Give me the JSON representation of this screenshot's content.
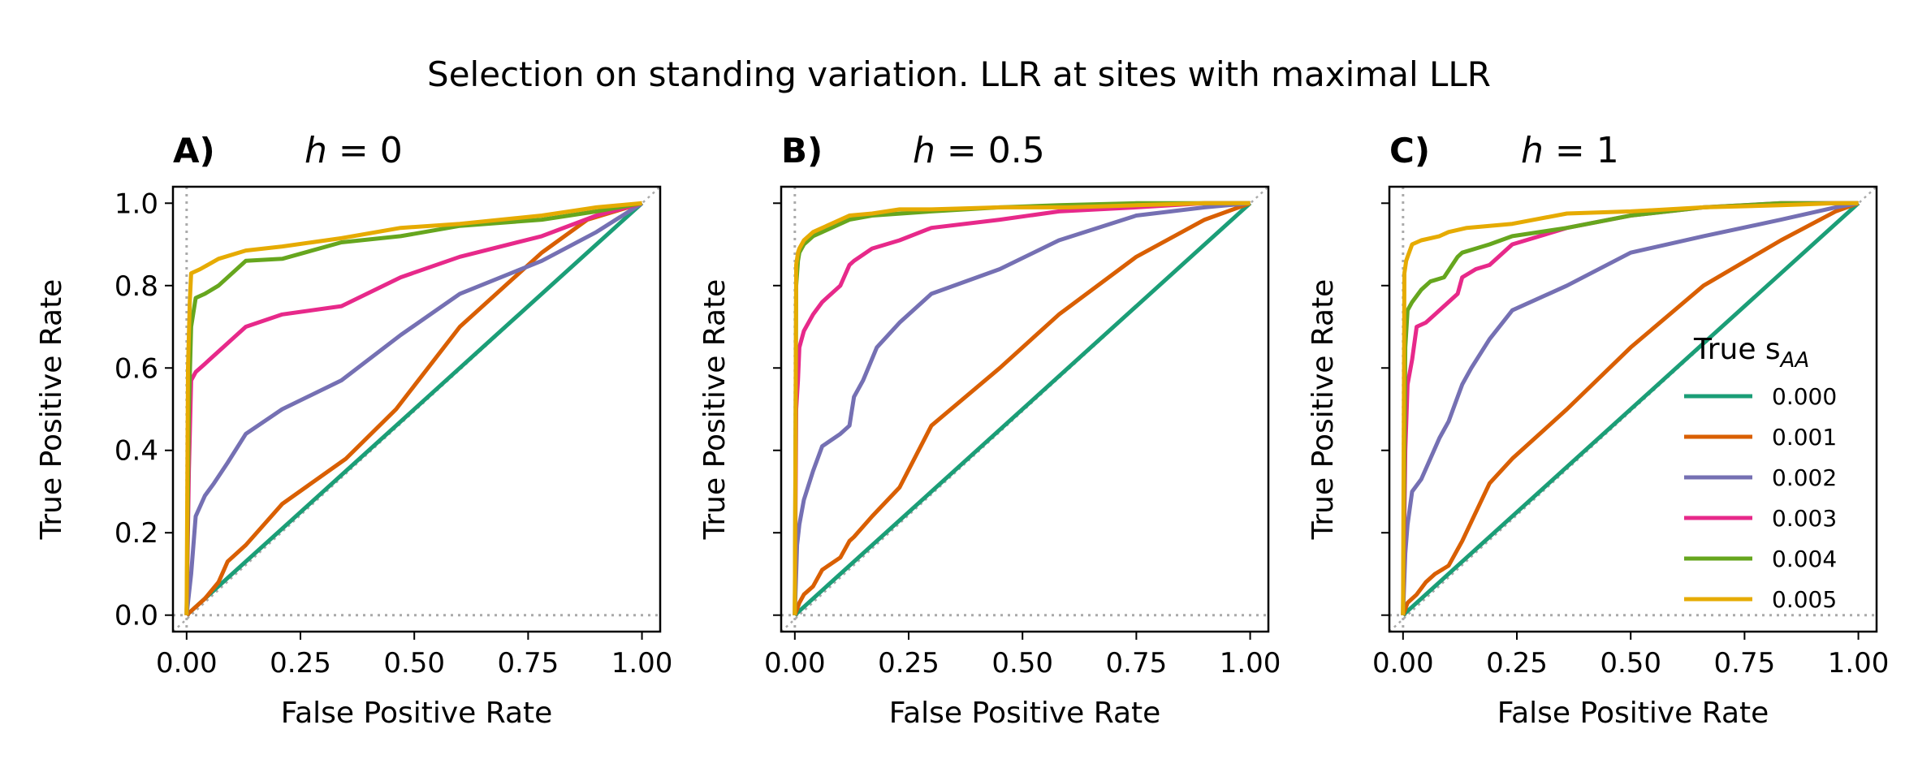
{
  "figure_title": "Selection on standing variation. LLR at sites with maximal LLR",
  "colors": {
    "0.000": "#1b9e77",
    "0.001": "#d95f02",
    "0.002": "#7570b3",
    "0.003": "#e7298a",
    "0.004": "#66a61e",
    "0.005": "#e6ab02",
    "reference": "#aaaaaa"
  },
  "legend": {
    "title_prefix": "True s",
    "title_subscript": "AA",
    "placement": "lower-right of panel C",
    "entries": [
      "0.000",
      "0.001",
      "0.002",
      "0.003",
      "0.004",
      "0.005"
    ]
  },
  "chart_data": [
    {
      "type": "line",
      "panel_label": "A)",
      "title_var": "h",
      "title_eq": " = 0",
      "xlabel": "False Positive Rate",
      "ylabel": "True Positive Rate",
      "xlim": [
        -0.03,
        1.04
      ],
      "ylim": [
        -0.04,
        1.04
      ],
      "xticks": [
        "0.00",
        "0.25",
        "0.50",
        "0.75",
        "1.00"
      ],
      "yticks": [
        "0.0",
        "0.2",
        "0.4",
        "0.6",
        "0.8",
        "1.0"
      ],
      "reference_lines": [
        "diagonal",
        "x = 0",
        "y = 0"
      ],
      "series": [
        {
          "name": "0.000",
          "x": [
            0,
            1
          ],
          "y": [
            0,
            1
          ]
        },
        {
          "name": "0.001",
          "x": [
            0,
            0.04,
            0.07,
            0.09,
            0.13,
            0.21,
            0.35,
            0.46,
            0.6,
            0.78,
            0.88,
            1.0
          ],
          "y": [
            0,
            0.04,
            0.08,
            0.13,
            0.17,
            0.27,
            0.38,
            0.5,
            0.7,
            0.88,
            0.96,
            1.0
          ]
        },
        {
          "name": "0.002",
          "x": [
            0,
            0.01,
            0.02,
            0.04,
            0.06,
            0.09,
            0.13,
            0.21,
            0.34,
            0.47,
            0.6,
            0.78,
            0.9,
            1.0
          ],
          "y": [
            0,
            0.1,
            0.24,
            0.29,
            0.32,
            0.37,
            0.44,
            0.5,
            0.57,
            0.68,
            0.78,
            0.86,
            0.93,
            1.0
          ]
        },
        {
          "name": "0.003",
          "x": [
            0,
            0.005,
            0.01,
            0.02,
            0.04,
            0.06,
            0.08,
            0.1,
            0.13,
            0.21,
            0.34,
            0.47,
            0.6,
            0.78,
            0.9,
            1.0
          ],
          "y": [
            0,
            0.35,
            0.57,
            0.59,
            0.61,
            0.63,
            0.65,
            0.67,
            0.7,
            0.73,
            0.75,
            0.82,
            0.87,
            0.92,
            0.97,
            1.0
          ]
        },
        {
          "name": "0.004",
          "x": [
            0,
            0.005,
            0.01,
            0.02,
            0.04,
            0.07,
            0.13,
            0.21,
            0.34,
            0.47,
            0.6,
            0.78,
            0.9,
            1.0
          ],
          "y": [
            0,
            0.5,
            0.7,
            0.77,
            0.78,
            0.8,
            0.86,
            0.865,
            0.905,
            0.92,
            0.945,
            0.96,
            0.98,
            1.0
          ]
        },
        {
          "name": "0.005",
          "x": [
            0,
            0.003,
            0.007,
            0.01,
            0.03,
            0.07,
            0.13,
            0.21,
            0.34,
            0.47,
            0.6,
            0.78,
            0.9,
            1.0
          ],
          "y": [
            0,
            0.6,
            0.76,
            0.83,
            0.84,
            0.865,
            0.885,
            0.895,
            0.915,
            0.94,
            0.95,
            0.97,
            0.99,
            1.0
          ]
        }
      ]
    },
    {
      "type": "line",
      "panel_label": "B)",
      "title_var": "h",
      "title_eq": " = 0.5",
      "xlabel": "False Positive Rate",
      "ylabel": "True Positive Rate",
      "xlim": [
        -0.03,
        1.04
      ],
      "ylim": [
        -0.04,
        1.04
      ],
      "xticks": [
        "0.00",
        "0.25",
        "0.50",
        "0.75",
        "1.00"
      ],
      "yticks": [
        "0.0",
        "0.2",
        "0.4",
        "0.6",
        "0.8",
        "1.0"
      ],
      "reference_lines": [
        "diagonal",
        "x = 0",
        "y = 0"
      ],
      "series": [
        {
          "name": "0.000",
          "x": [
            0,
            1
          ],
          "y": [
            0,
            1
          ]
        },
        {
          "name": "0.001",
          "x": [
            0,
            0.01,
            0.02,
            0.04,
            0.06,
            0.1,
            0.12,
            0.13,
            0.17,
            0.23,
            0.3,
            0.45,
            0.58,
            0.75,
            0.9,
            1.0
          ],
          "y": [
            0,
            0.03,
            0.05,
            0.07,
            0.11,
            0.14,
            0.18,
            0.19,
            0.24,
            0.31,
            0.46,
            0.6,
            0.73,
            0.87,
            0.96,
            1.0
          ]
        },
        {
          "name": "0.002",
          "x": [
            0,
            0.005,
            0.01,
            0.02,
            0.04,
            0.06,
            0.1,
            0.12,
            0.13,
            0.15,
            0.18,
            0.23,
            0.3,
            0.45,
            0.58,
            0.75,
            0.9,
            1.0
          ],
          "y": [
            0,
            0.17,
            0.22,
            0.28,
            0.35,
            0.41,
            0.44,
            0.46,
            0.53,
            0.57,
            0.65,
            0.71,
            0.78,
            0.84,
            0.91,
            0.97,
            0.99,
            1.0
          ]
        },
        {
          "name": "0.003",
          "x": [
            0,
            0.003,
            0.007,
            0.01,
            0.02,
            0.04,
            0.06,
            0.1,
            0.12,
            0.13,
            0.17,
            0.23,
            0.3,
            0.45,
            0.58,
            0.75,
            0.9,
            1.0
          ],
          "y": [
            0,
            0.5,
            0.57,
            0.65,
            0.69,
            0.73,
            0.76,
            0.8,
            0.85,
            0.86,
            0.89,
            0.91,
            0.94,
            0.96,
            0.98,
            0.99,
            1.0,
            1.0
          ]
        },
        {
          "name": "0.004",
          "x": [
            0,
            0.003,
            0.007,
            0.01,
            0.02,
            0.04,
            0.06,
            0.12,
            0.17,
            0.3,
            0.45,
            0.58,
            0.75,
            0.9,
            1.0
          ],
          "y": [
            0,
            0.8,
            0.86,
            0.88,
            0.9,
            0.92,
            0.93,
            0.96,
            0.97,
            0.98,
            0.99,
            0.995,
            1.0,
            1.0,
            1.0
          ]
        },
        {
          "name": "0.005",
          "x": [
            0,
            0.003,
            0.007,
            0.01,
            0.02,
            0.04,
            0.08,
            0.12,
            0.17,
            0.23,
            0.3,
            0.45,
            0.6,
            0.75,
            0.9,
            1.0
          ],
          "y": [
            0,
            0.85,
            0.88,
            0.89,
            0.91,
            0.93,
            0.95,
            0.97,
            0.975,
            0.985,
            0.985,
            0.99,
            0.99,
            0.995,
            1.0,
            1.0
          ]
        }
      ]
    },
    {
      "type": "line",
      "panel_label": "C)",
      "title_var": "h",
      "title_eq": " = 1",
      "xlabel": "False Positive Rate",
      "ylabel": "True Positive Rate",
      "xlim": [
        -0.03,
        1.04
      ],
      "ylim": [
        -0.04,
        1.04
      ],
      "xticks": [
        "0.00",
        "0.25",
        "0.50",
        "0.75",
        "1.00"
      ],
      "yticks": [
        "0.0",
        "0.2",
        "0.4",
        "0.6",
        "0.8",
        "1.0"
      ],
      "reference_lines": [
        "diagonal",
        "x = 0",
        "y = 0"
      ],
      "series": [
        {
          "name": "0.000",
          "x": [
            0,
            1
          ],
          "y": [
            0,
            1
          ]
        },
        {
          "name": "0.001",
          "x": [
            0,
            0.01,
            0.03,
            0.05,
            0.07,
            0.1,
            0.13,
            0.16,
            0.19,
            0.24,
            0.36,
            0.5,
            0.66,
            0.83,
            0.95,
            1.0
          ],
          "y": [
            0,
            0.03,
            0.05,
            0.08,
            0.1,
            0.12,
            0.18,
            0.25,
            0.32,
            0.38,
            0.5,
            0.65,
            0.8,
            0.91,
            0.98,
            1.0
          ]
        },
        {
          "name": "0.002",
          "x": [
            0,
            0.005,
            0.01,
            0.02,
            0.04,
            0.06,
            0.08,
            0.1,
            0.12,
            0.13,
            0.15,
            0.19,
            0.24,
            0.36,
            0.5,
            0.66,
            0.83,
            0.95,
            1.0
          ],
          "y": [
            0,
            0.15,
            0.22,
            0.3,
            0.33,
            0.38,
            0.43,
            0.47,
            0.53,
            0.56,
            0.6,
            0.67,
            0.74,
            0.8,
            0.88,
            0.92,
            0.96,
            0.99,
            1.0
          ]
        },
        {
          "name": "0.003",
          "x": [
            0,
            0.005,
            0.01,
            0.02,
            0.03,
            0.05,
            0.07,
            0.09,
            0.12,
            0.13,
            0.16,
            0.19,
            0.24,
            0.36,
            0.5,
            0.66,
            0.83,
            0.95,
            1.0
          ],
          "y": [
            0,
            0.4,
            0.56,
            0.62,
            0.7,
            0.71,
            0.73,
            0.75,
            0.78,
            0.82,
            0.84,
            0.85,
            0.9,
            0.94,
            0.97,
            0.99,
            1.0,
            1.0,
            1.0
          ]
        },
        {
          "name": "0.004",
          "x": [
            0,
            0.005,
            0.01,
            0.02,
            0.04,
            0.06,
            0.09,
            0.12,
            0.13,
            0.16,
            0.19,
            0.24,
            0.36,
            0.5,
            0.66,
            0.83,
            0.95,
            1.0
          ],
          "y": [
            0,
            0.65,
            0.74,
            0.76,
            0.79,
            0.81,
            0.82,
            0.87,
            0.88,
            0.89,
            0.9,
            0.92,
            0.94,
            0.97,
            0.99,
            1.0,
            1.0,
            1.0
          ]
        },
        {
          "name": "0.005",
          "x": [
            0,
            0.003,
            0.007,
            0.01,
            0.02,
            0.04,
            0.08,
            0.1,
            0.14,
            0.19,
            0.24,
            0.36,
            0.5,
            0.66,
            0.83,
            0.95,
            1.0
          ],
          "y": [
            0,
            0.83,
            0.86,
            0.87,
            0.9,
            0.91,
            0.92,
            0.93,
            0.94,
            0.945,
            0.95,
            0.975,
            0.98,
            0.99,
            0.995,
            1.0,
            1.0
          ]
        }
      ]
    }
  ]
}
